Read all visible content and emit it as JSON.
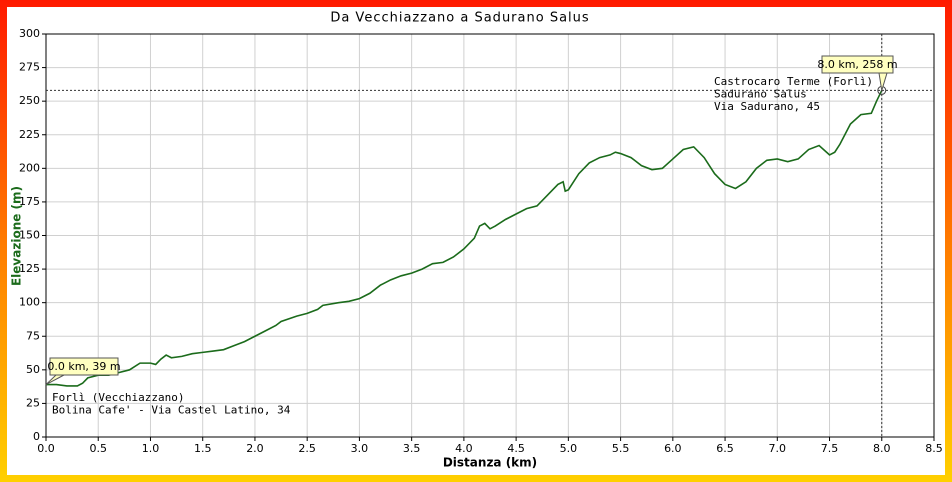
{
  "chart_data": {
    "type": "line",
    "title": "Da Vecchiazzano a Sadurano Salus",
    "x_label": "Distanza (km)",
    "y_label": "Elevazione (m)",
    "x": [
      0.0,
      0.1,
      0.2,
      0.3,
      0.35,
      0.4,
      0.5,
      0.6,
      0.7,
      0.8,
      0.9,
      1.0,
      1.05,
      1.1,
      1.15,
      1.2,
      1.3,
      1.4,
      1.5,
      1.6,
      1.7,
      1.8,
      1.9,
      2.0,
      2.1,
      2.2,
      2.25,
      2.4,
      2.5,
      2.6,
      2.65,
      2.8,
      2.9,
      3.0,
      3.1,
      3.2,
      3.3,
      3.4,
      3.5,
      3.6,
      3.7,
      3.8,
      3.9,
      4.0,
      4.1,
      4.15,
      4.2,
      4.25,
      4.3,
      4.4,
      4.5,
      4.6,
      4.7,
      4.8,
      4.9,
      4.95,
      4.97,
      5.0,
      5.1,
      5.2,
      5.3,
      5.4,
      5.45,
      5.5,
      5.6,
      5.7,
      5.8,
      5.9,
      6.0,
      6.1,
      6.2,
      6.3,
      6.4,
      6.5,
      6.6,
      6.7,
      6.8,
      6.9,
      7.0,
      7.1,
      7.2,
      7.3,
      7.4,
      7.5,
      7.55,
      7.6,
      7.7,
      7.8,
      7.9,
      7.95,
      8.0
    ],
    "series": [
      {
        "color": "#1b6b1b",
        "values": [
          39,
          39,
          38,
          38,
          40,
          44,
          46,
          46,
          48,
          50,
          55,
          55,
          54,
          58,
          61,
          59,
          60,
          62,
          63,
          64,
          65,
          68,
          71,
          75,
          79,
          83,
          86,
          90,
          92,
          95,
          98,
          100,
          101,
          103,
          107,
          113,
          117,
          120,
          122,
          125,
          129,
          130,
          134,
          140,
          148,
          157,
          159,
          155,
          157,
          162,
          166,
          170,
          172,
          180,
          188,
          190,
          183,
          184,
          196,
          204,
          208,
          210,
          212,
          211,
          208,
          202,
          199,
          200,
          207,
          214,
          216,
          208,
          196,
          188,
          185,
          190,
          200,
          206,
          207,
          205,
          207,
          214,
          217,
          210,
          212,
          218,
          233,
          240,
          241,
          250,
          258
        ]
      }
    ],
    "xlim": [
      0,
      8.5
    ],
    "ylim": [
      0,
      300
    ],
    "xticks": [
      {
        "value": 0,
        "label": "0.0"
      },
      0.5,
      {
        "value": 1,
        "label": "1.0"
      },
      1.5,
      {
        "value": 2,
        "label": "2.0"
      },
      2.5,
      {
        "value": 3,
        "label": "3.0"
      },
      3.5,
      {
        "value": 4,
        "label": "4.0"
      },
      4.5,
      {
        "value": 5,
        "label": "5.0"
      },
      5.5,
      {
        "value": 6,
        "label": "6.0"
      },
      6.5,
      {
        "value": 7,
        "label": "7.0"
      },
      7.5,
      {
        "value": 8,
        "label": "8.0"
      },
      8.5
    ],
    "yticks": [
      0,
      25,
      50,
      75,
      100,
      125,
      150,
      175,
      200,
      225,
      250,
      275,
      300
    ],
    "grid": true,
    "annotations": [
      {
        "label": "0.0 km, 39 m",
        "lines": [
          "Forlì (Vecchiazzano)",
          "Bolina Cafe' - Via Castel Latino, 34"
        ]
      },
      {
        "label": "8.0 km, 258 m",
        "lines": [
          "Castrocaro Terme (Forlì)",
          "Sadurano Salus",
          "Via Sadurano, 45"
        ]
      }
    ]
  }
}
